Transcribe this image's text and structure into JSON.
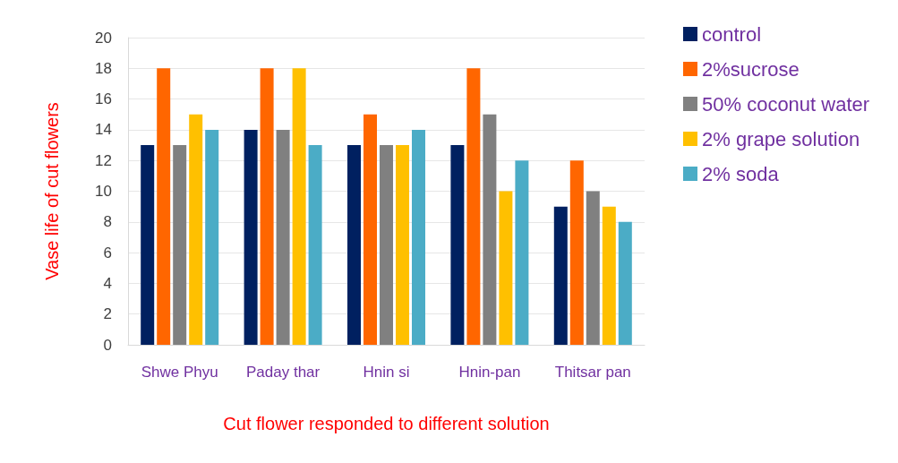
{
  "chart_data": {
    "type": "bar",
    "xlabel": "Cut flower responded to different solution",
    "ylabel": "Vase life of cut flowers",
    "categories": [
      "Shwe Phyu",
      "Paday thar",
      "Hnin si",
      "Hnin-pan",
      "Thitsar pan"
    ],
    "series": [
      {
        "name": "control",
        "color": "#002060",
        "values": [
          13,
          14,
          13,
          13,
          9
        ]
      },
      {
        "name": "2%sucrose",
        "color": "#ff6600",
        "values": [
          18,
          18,
          15,
          18,
          12
        ]
      },
      {
        "name": "50% coconut water",
        "color": "#808080",
        "values": [
          13,
          14,
          13,
          15,
          10
        ]
      },
      {
        "name": "2% grape solution",
        "color": "#ffc000",
        "values": [
          15,
          18,
          13,
          10,
          9
        ]
      },
      {
        "name": "2% soda",
        "color": "#4bacc6",
        "values": [
          14,
          13,
          14,
          12,
          8
        ]
      }
    ],
    "ylim": [
      0,
      20
    ],
    "yticks": [
      0,
      2,
      4,
      6,
      8,
      10,
      12,
      14,
      16,
      18,
      20
    ],
    "grid": "y",
    "legend": "top right"
  }
}
